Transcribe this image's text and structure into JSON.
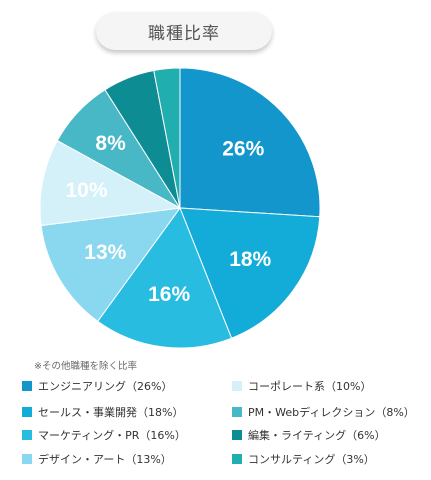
{
  "title": "職種比率",
  "note": "※その他職種を除く比率",
  "chart_data": {
    "type": "pie",
    "start_angle_deg": 0,
    "direction": "clockwise",
    "slices": [
      {
        "label": "エンジニアリング（26%）",
        "value": 26,
        "display": "26%",
        "color": "#1296cc"
      },
      {
        "label": "セールス・事業開発（18%）",
        "value": 18,
        "display": "18%",
        "color": "#13abd8"
      },
      {
        "label": "マーケティング・PR（16%）",
        "value": 16,
        "display": "16%",
        "color": "#28bde0"
      },
      {
        "label": "デザイン・アート（13%）",
        "value": 13,
        "display": "13%",
        "color": "#8ad8ef"
      },
      {
        "label": "コーポレート系（10%）",
        "value": 10,
        "display": "10%",
        "color": "#d4f1fa"
      },
      {
        "label": "PM・Webディレクション（8%）",
        "value": 8,
        "display": "8%",
        "color": "#48b8c6"
      },
      {
        "label": "編集・ライティング（6%）",
        "value": 6,
        "display": "",
        "color": "#0e8c93"
      },
      {
        "label": "コンサルティング（3%）",
        "value": 3,
        "display": "",
        "color": "#20aeae"
      }
    ]
  }
}
